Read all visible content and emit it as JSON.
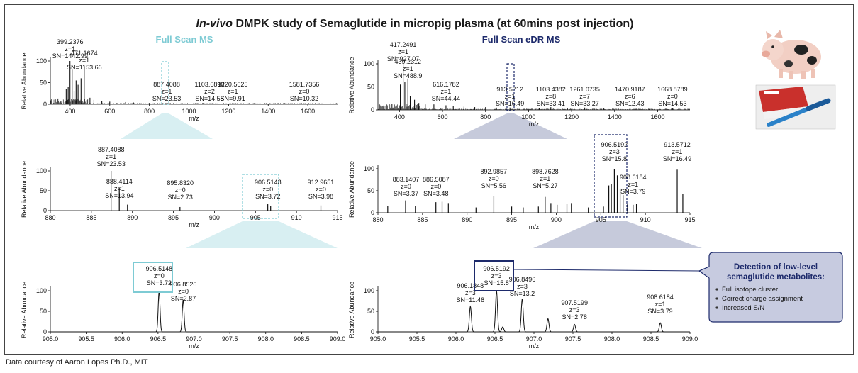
{
  "title": {
    "italic": "In-vivo",
    "rest": " DMPK study of Semaglutide in micropig plasma (at 60mins post injection)"
  },
  "left_section_label": "Full Scan MS",
  "right_section_label": "Full Scan eDR MS",
  "footer": "Data courtesy of Aaron Lopes Ph.D., MIT",
  "callout": {
    "title_line1": "Detection of low-level",
    "title_line2": "semaglutide metabolites:",
    "items": [
      "Full isotope cluster",
      "Correct charge assignment",
      "Increased S/N"
    ]
  },
  "colors": {
    "cyan": "#7ecbd4",
    "navy": "#1d2a6b",
    "callout_bg": "#c7cbe0",
    "funnel_cyan": "#d8eff2",
    "funnel_navy": "#c6cadb"
  },
  "chart_data": [
    {
      "id": "A",
      "type": "line",
      "xlabel": "m/z",
      "ylabel": "Relative Abundance",
      "xlim": [
        300,
        1750
      ],
      "ylim": [
        0,
        100
      ],
      "xticks": [
        400,
        600,
        800,
        1000,
        1200,
        1400,
        1600
      ],
      "yticks": [
        0,
        50,
        100
      ],
      "labels": [
        {
          "x": 399.2376,
          "lines": [
            "399.2376",
            "z=1",
            "SN=1442.99"
          ]
        },
        {
          "x": 471.1674,
          "lines": [
            "471.1674",
            "z=1",
            "SN=1153.66"
          ]
        },
        {
          "x": 887.4088,
          "lines": [
            "887.4088",
            "z=1",
            "SN=23.53"
          ]
        },
        {
          "x": 1103.689,
          "lines": [
            "1103.6890",
            "z=2",
            "SN=14.58"
          ]
        },
        {
          "x": 1220.5625,
          "lines": [
            "1220.5625",
            "z=1",
            "SN=9.91"
          ]
        },
        {
          "x": 1581.7356,
          "lines": [
            "1581.7356",
            "z=0",
            "SN=10.32"
          ]
        }
      ]
    },
    {
      "id": "B",
      "type": "line",
      "xlabel": "m/z",
      "ylabel": "Relative Abundance",
      "xlim": [
        300,
        1750
      ],
      "ylim": [
        0,
        100
      ],
      "xticks": [
        400,
        600,
        800,
        1000,
        1200,
        1400,
        1600
      ],
      "yticks": [
        0,
        50,
        100
      ],
      "labels": [
        {
          "x": 417.2491,
          "lines": [
            "417.2491",
            "z=1",
            "SN=927.07"
          ]
        },
        {
          "x": 439.2312,
          "lines": [
            "439.2312",
            "z=1",
            "SN=488.9"
          ]
        },
        {
          "x": 616.1782,
          "lines": [
            "616.1782",
            "z=1",
            "SN=44.44"
          ]
        },
        {
          "x": 913.5712,
          "lines": [
            "913.5712",
            "z=1",
            "SN=16.49"
          ]
        },
        {
          "x": 1103.4382,
          "lines": [
            "1103.4382",
            "z=8",
            "SN=33.41"
          ]
        },
        {
          "x": 1261.0735,
          "lines": [
            "1261.0735",
            "z=7",
            "SN=33.27"
          ]
        },
        {
          "x": 1470.9187,
          "lines": [
            "1470.9187",
            "z=6",
            "SN=12.43"
          ]
        },
        {
          "x": 1668.8789,
          "lines": [
            "1668.8789",
            "z=0",
            "SN=14.53"
          ]
        }
      ]
    },
    {
      "id": "C",
      "type": "bar",
      "xlabel": "m/z",
      "ylabel": "Relative Abundance",
      "xlim": [
        880,
        915
      ],
      "ylim": [
        0,
        100
      ],
      "xticks": [
        880,
        885,
        890,
        895,
        900,
        905,
        910,
        915
      ],
      "yticks": [
        0,
        50,
        100
      ],
      "peaks": [
        [
          887.4,
          100
        ],
        [
          888.4,
          58
        ],
        [
          889.4,
          15
        ],
        [
          895.8,
          9
        ],
        [
          906.5,
          16
        ],
        [
          906.85,
          12
        ],
        [
          912.97,
          13
        ]
      ],
      "labels": [
        {
          "x": 887.4088,
          "lines": [
            "887.4088",
            "z=1",
            "SN=23.53"
          ]
        },
        {
          "x": 888.4114,
          "lines": [
            "888.4114",
            "z=1",
            "SN=13.94"
          ]
        },
        {
          "x": 895.832,
          "lines": [
            "895.8320",
            "z=0",
            "SN=2.73"
          ]
        },
        {
          "x": 906.5148,
          "lines": [
            "906.5148",
            "z=0",
            "SN=3.72"
          ]
        },
        {
          "x": 912.9651,
          "lines": [
            "912.9651",
            "z=0",
            "SN=3.98"
          ]
        }
      ]
    },
    {
      "id": "D",
      "type": "bar",
      "xlabel": "m/z",
      "ylabel": "Relative Abundance",
      "xlim": [
        880,
        915
      ],
      "ylim": [
        0,
        100
      ],
      "xticks": [
        880,
        885,
        890,
        895,
        900,
        905,
        910,
        915
      ],
      "yticks": [
        0,
        50,
        100
      ],
      "peaks": [
        [
          881.1,
          15
        ],
        [
          883.1,
          28
        ],
        [
          884.2,
          15
        ],
        [
          886.5,
          24
        ],
        [
          887.2,
          25
        ],
        [
          887.9,
          22
        ],
        [
          891.0,
          12
        ],
        [
          893.0,
          38
        ],
        [
          895.0,
          14
        ],
        [
          896.3,
          12
        ],
        [
          898.0,
          14
        ],
        [
          898.76,
          36
        ],
        [
          899.4,
          22
        ],
        [
          900.1,
          18
        ],
        [
          901.2,
          20
        ],
        [
          901.7,
          22
        ],
        [
          903.6,
          12
        ],
        [
          905.3,
          14
        ],
        [
          905.9,
          62
        ],
        [
          906.18,
          65
        ],
        [
          906.52,
          100
        ],
        [
          906.85,
          85
        ],
        [
          907.17,
          55
        ],
        [
          907.5,
          40
        ],
        [
          908.0,
          20
        ],
        [
          908.62,
          18
        ],
        [
          909.0,
          20
        ],
        [
          913.57,
          98
        ],
        [
          914.2,
          42
        ]
      ],
      "labels": [
        {
          "x": 883.1407,
          "lines": [
            "883.1407",
            "z=0",
            "SN=3.37"
          ]
        },
        {
          "x": 886.5087,
          "lines": [
            "886.5087",
            "z=0",
            "SN=3.48"
          ]
        },
        {
          "x": 892.9857,
          "lines": [
            "892.9857",
            "z=0",
            "SN=5.56"
          ]
        },
        {
          "x": 898.7628,
          "lines": [
            "898.7628",
            "z=1",
            "SN=5.27"
          ]
        },
        {
          "x": 906.5192,
          "lines": [
            "906.5192",
            "z=3",
            "SN=15.8"
          ]
        },
        {
          "x": 908.6184,
          "lines": [
            "908.6184",
            "z=1",
            "SN=3.79"
          ]
        },
        {
          "x": 913.5712,
          "lines": [
            "913.5712",
            "z=1",
            "SN=16.49"
          ]
        }
      ]
    },
    {
      "id": "E",
      "type": "line",
      "xlabel": "m/z",
      "ylabel": "Relative Abundance",
      "xlim": [
        905.0,
        909.0
      ],
      "ylim": [
        0,
        100
      ],
      "xticks": [
        "905.0",
        "905.5",
        "906.0",
        "906.5",
        "907.0",
        "907.5",
        "908.0",
        "908.5",
        "909.0"
      ],
      "yticks": [
        0,
        50,
        100
      ],
      "peaks": [
        [
          906.515,
          100
        ],
        [
          906.85,
          78
        ]
      ],
      "labels": [
        {
          "x": 906.5148,
          "lines": [
            "906.5148",
            "z=0",
            "SN=3.72"
          ]
        },
        {
          "x": 906.8526,
          "lines": [
            "906.8526",
            "z=0",
            "SN=2.87"
          ]
        }
      ]
    },
    {
      "id": "F",
      "type": "line",
      "xlabel": "m/z",
      "ylabel": "Relative Abundance",
      "xlim": [
        905.0,
        909.0
      ],
      "ylim": [
        0,
        100
      ],
      "xticks": [
        "905.0",
        "905.5",
        "906.0",
        "906.5",
        "907.0",
        "907.5",
        "908.0",
        "908.5",
        "909.0"
      ],
      "yticks": [
        0,
        50,
        100
      ],
      "peaks": [
        [
          906.185,
          62
        ],
        [
          906.52,
          100
        ],
        [
          906.6,
          12
        ],
        [
          906.85,
          80
        ],
        [
          907.18,
          32
        ],
        [
          907.52,
          18
        ],
        [
          908.62,
          22
        ]
      ],
      "labels": [
        {
          "x": 906.1848,
          "lines": [
            "906.1848",
            "z=3",
            "SN=11.48"
          ]
        },
        {
          "x": 906.5192,
          "lines": [
            "906.5192",
            "z=3",
            "SN=15.8"
          ]
        },
        {
          "x": 906.8496,
          "lines": [
            "906.8496",
            "z=3",
            "SN=13.2"
          ]
        },
        {
          "x": 907.5199,
          "lines": [
            "907.5199",
            "z=3",
            "SN=2.78"
          ]
        },
        {
          "x": 908.6184,
          "lines": [
            "908.6184",
            "z=1",
            "SN=3.79"
          ]
        }
      ]
    }
  ]
}
